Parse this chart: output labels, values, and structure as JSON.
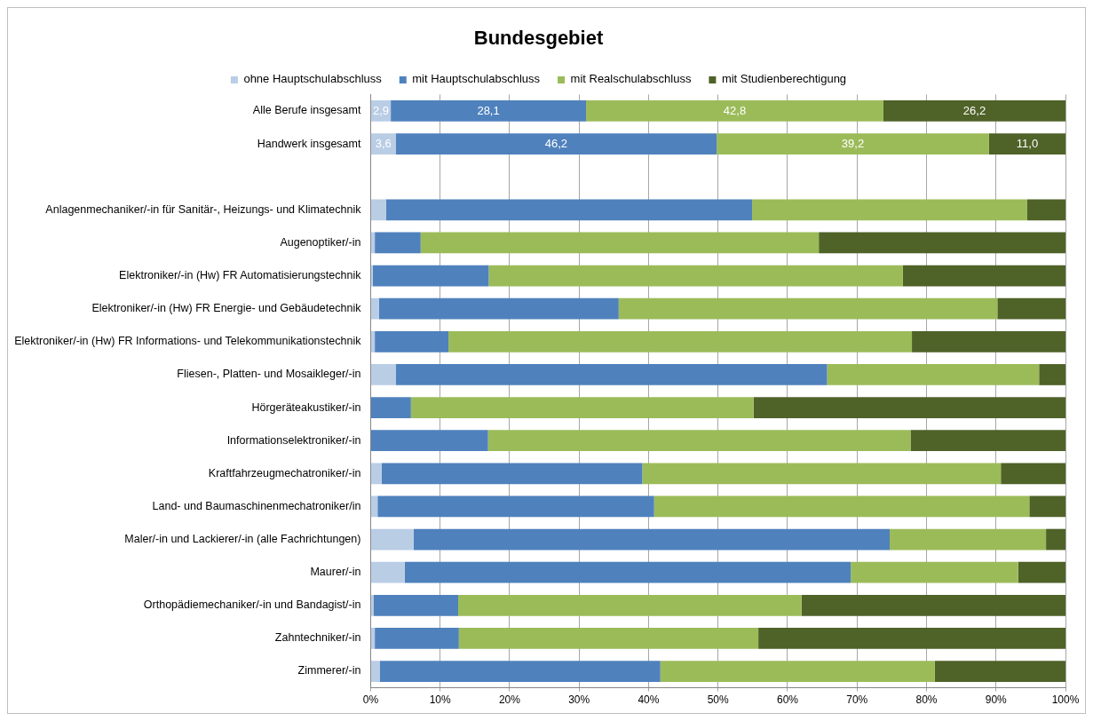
{
  "chart_data": {
    "type": "bar",
    "title": "Bundesgebiet",
    "orientation": "horizontal",
    "stacked": true,
    "categories": [
      "Alle Berufe insgesamt",
      "Handwerk insgesamt",
      null,
      "Anlagenmechaniker/-in für Sanitär-, Heizungs- und Klimatechnik",
      "Augenoptiker/-in",
      "Elektroniker/-in (Hw) FR Automatisierungstechnik",
      "Elektroniker/-in (Hw) FR Energie- und Gebäudetechnik",
      "Elektroniker/-in (Hw) FR Informations- und Telekommunikationstechnik",
      "Fliesen-, Platten- und Mosaikleger/-in",
      "Hörgeräteakustiker/-in",
      "Informationselektroniker/-in",
      "Kraftfahrzeugmechatroniker/-in",
      "Land- und Baumaschinenmechatroniker/in",
      "Maler/-in und Lackierer/-in (alle Fachrichtungen)",
      "Maurer/-in",
      "Orthopädiemechaniker/-in und Bandagist/-in",
      "Zahntechniker/-in",
      "Zimmerer/-in"
    ],
    "series": [
      {
        "name": "ohne Hauptschulabschluss",
        "color": "#b9cde5",
        "values": [
          2.9,
          3.6,
          null,
          2.2,
          0.6,
          0.3,
          1.2,
          0.6,
          3.6,
          0.0,
          0.0,
          1.6,
          1.0,
          6.2,
          4.9,
          0.4,
          0.6,
          1.3
        ],
        "value_labels": [
          "2,9",
          "3,6",
          null,
          null,
          null,
          null,
          null,
          null,
          null,
          null,
          null,
          null,
          null,
          null,
          null,
          null,
          null,
          null
        ]
      },
      {
        "name": "mit Hauptschulabschluss",
        "color": "#4f81bd",
        "values": [
          28.1,
          46.2,
          null,
          52.7,
          6.6,
          16.7,
          34.5,
          10.6,
          62.1,
          5.8,
          16.9,
          37.5,
          39.8,
          68.5,
          64.2,
          12.2,
          12.1,
          40.4
        ],
        "value_labels": [
          "28,1",
          "46,2",
          null,
          null,
          null,
          null,
          null,
          null,
          null,
          null,
          null,
          null,
          null,
          null,
          null,
          null,
          null,
          null
        ]
      },
      {
        "name": "mit Realschulabschluss",
        "color": "#9bbb59",
        "values": [
          42.8,
          39.2,
          null,
          39.6,
          57.3,
          59.6,
          54.5,
          66.7,
          30.5,
          49.3,
          60.8,
          51.6,
          54.0,
          22.5,
          24.1,
          49.4,
          43.1,
          39.5
        ],
        "value_labels": [
          "42,8",
          "39,2",
          null,
          null,
          null,
          null,
          null,
          null,
          null,
          null,
          null,
          null,
          null,
          null,
          null,
          null,
          null,
          null
        ]
      },
      {
        "name": "mit Studienberechtigung",
        "color": "#4f6228",
        "values": [
          26.2,
          11.0,
          null,
          5.5,
          35.5,
          23.4,
          9.8,
          22.1,
          3.8,
          44.9,
          22.3,
          9.3,
          5.2,
          2.8,
          6.8,
          38.0,
          44.2,
          18.8
        ],
        "value_labels": [
          "26,2",
          "11,0",
          null,
          null,
          null,
          null,
          null,
          null,
          null,
          null,
          null,
          null,
          null,
          null,
          null,
          null,
          null,
          null
        ]
      }
    ],
    "xlim": [
      0,
      100
    ],
    "xticks": [
      {
        "value": 0,
        "label": "0%"
      },
      {
        "value": 10,
        "label": "10%"
      },
      {
        "value": 20,
        "label": "20%"
      },
      {
        "value": 30,
        "label": "30%"
      },
      {
        "value": 40,
        "label": "40%"
      },
      {
        "value": 50,
        "label": "50%"
      },
      {
        "value": 60,
        "label": "60%"
      },
      {
        "value": 70,
        "label": "70%"
      },
      {
        "value": 80,
        "label": "80%"
      },
      {
        "value": 90,
        "label": "90%"
      },
      {
        "value": 100,
        "label": "100%"
      }
    ],
    "grid": "x",
    "legend": "top"
  }
}
